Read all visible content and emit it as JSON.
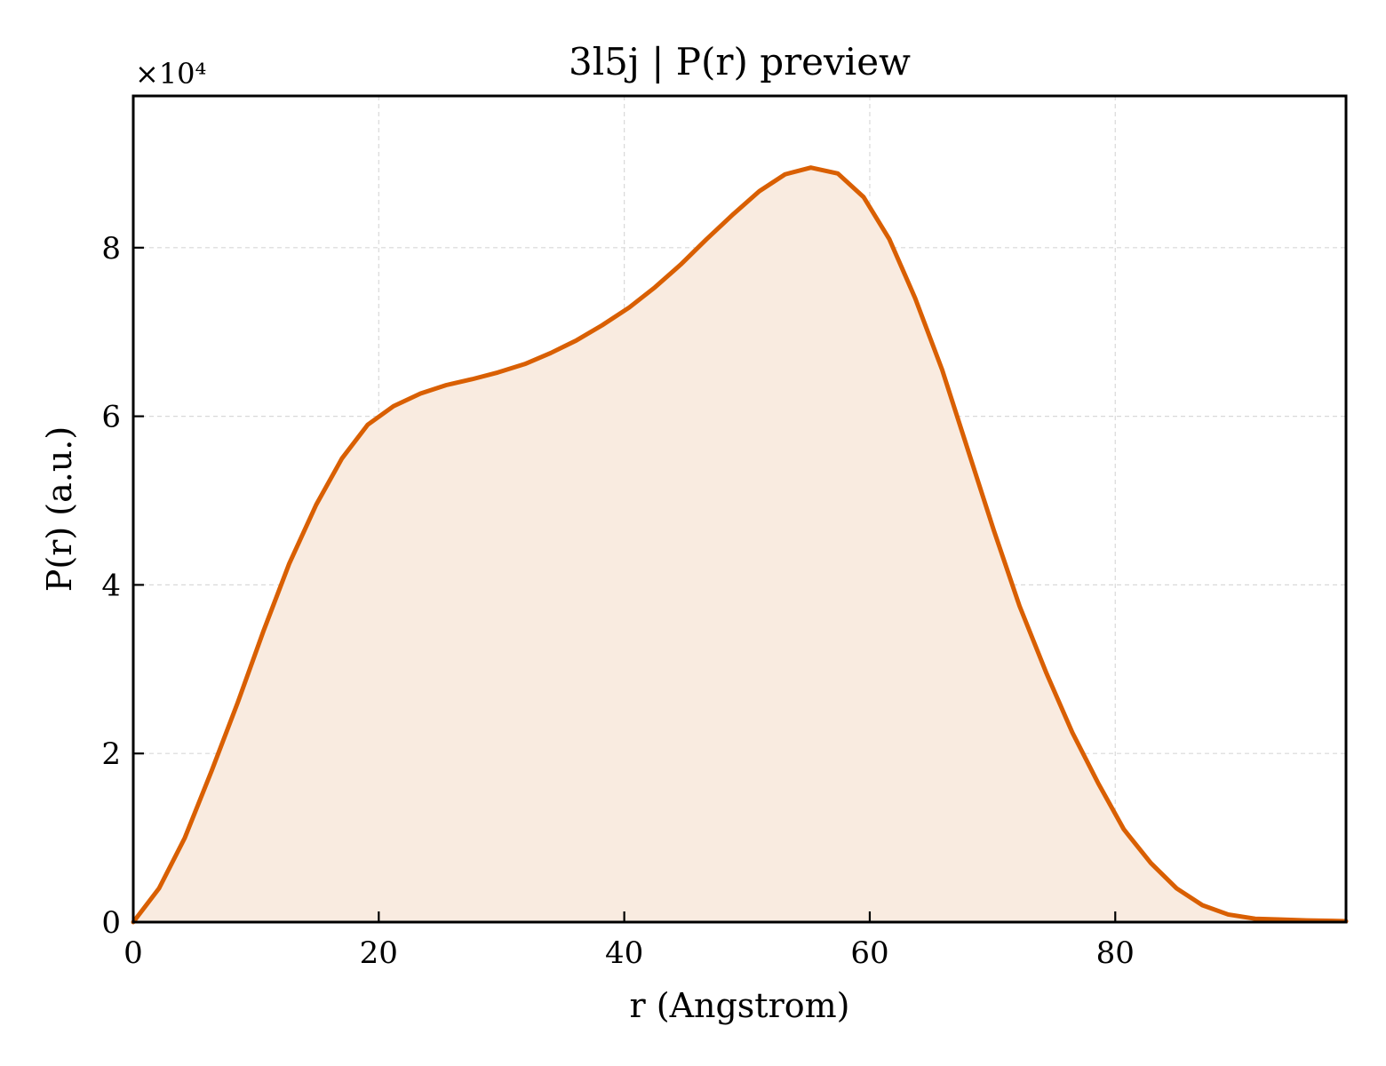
{
  "chart_data": {
    "type": "area",
    "title": "3l5j | P(r) preview",
    "xlabel": "r (Angstrom)",
    "ylabel": "P(r) (a.u.)",
    "y_offset_label": "×10⁴",
    "xlim": [
      0,
      98.8
    ],
    "ylim": [
      0,
      98000
    ],
    "xticks": [
      0,
      20,
      40,
      60,
      80
    ],
    "yticks": [
      0,
      20000,
      40000,
      60000,
      80000
    ],
    "ytick_labels": [
      "0",
      "2",
      "4",
      "6",
      "8"
    ],
    "grid": true,
    "line_color": "#d95f02",
    "fill_color": "#f9ebe0",
    "series": [
      {
        "x": [
          0,
          2.1,
          4.2,
          6.4,
          8.5,
          10.6,
          12.7,
          14.9,
          17.0,
          19.1,
          21.2,
          23.4,
          25.5,
          27.6,
          29.7,
          31.9,
          34.0,
          36.1,
          38.2,
          40.4,
          42.5,
          44.6,
          46.7,
          48.9,
          51.0,
          53.1,
          55.2,
          57.4,
          59.5,
          61.6,
          63.7,
          65.9,
          68.0,
          70.1,
          72.2,
          74.4,
          76.5,
          78.6,
          80.7,
          82.9,
          85.0,
          87.1,
          89.2,
          91.4,
          93.5,
          95.6,
          97.7,
          98.8
        ],
        "y": [
          0,
          4000,
          10000,
          18000,
          26000,
          34500,
          42500,
          49500,
          55000,
          59000,
          61200,
          62700,
          63700,
          64400,
          65200,
          66200,
          67500,
          69000,
          70800,
          72900,
          75300,
          78000,
          81000,
          84000,
          86700,
          88700,
          89500,
          88800,
          86000,
          81000,
          74000,
          65500,
          56000,
          46500,
          37500,
          29500,
          22500,
          16500,
          11000,
          7000,
          4000,
          2000,
          900,
          400,
          300,
          200,
          150,
          100
        ]
      }
    ]
  }
}
